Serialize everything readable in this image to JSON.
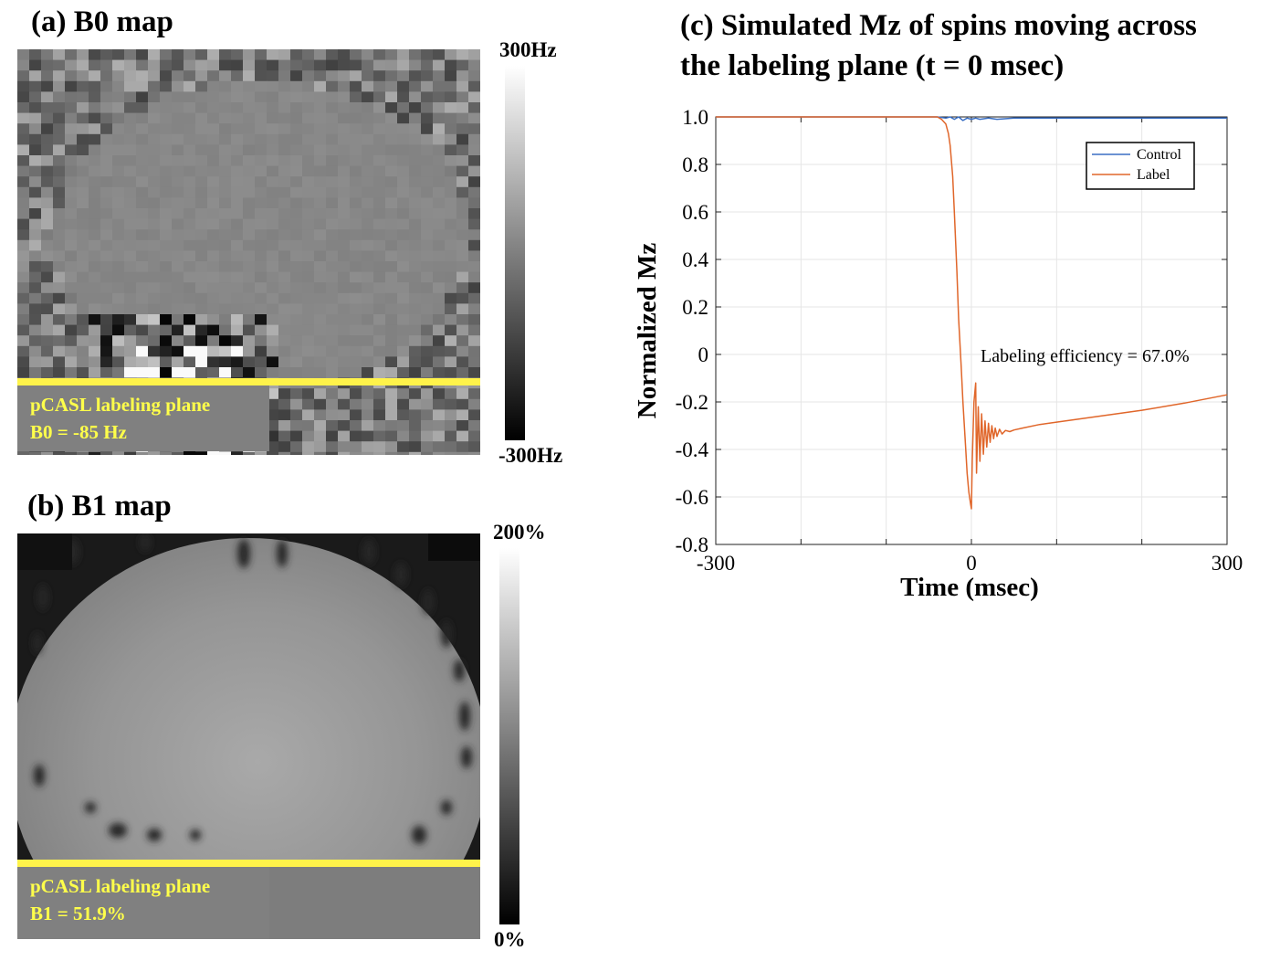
{
  "panel_a": {
    "title": "(a) B0 map",
    "plane_label": "pCASL labeling plane",
    "plane_value": "B0 = -85 Hz",
    "colorbar": {
      "max_label": "300Hz",
      "min_label": "-300Hz"
    }
  },
  "panel_b": {
    "title": "(b) B1 map",
    "plane_label": "pCASL labeling plane",
    "plane_value": "B1 = 51.9%",
    "colorbar": {
      "max_label": "200%",
      "min_label": "0%"
    }
  },
  "colors": {
    "plane": "#fff34a",
    "plane_text": "#ffff4a",
    "control": "#3a6fc4",
    "label": "#e0662a"
  },
  "chart_data": {
    "type": "line",
    "title": "(c) Simulated Mz of spins moving across the labeling plane (t = 0 msec)",
    "title_lines": [
      "(c) Simulated Mz of spins moving across",
      "the labeling plane (t = 0 msec)"
    ],
    "xlabel": "Time (msec)",
    "ylabel": "Normalized Mz",
    "xlim": [
      -300,
      300
    ],
    "ylim": [
      -0.8,
      1.0
    ],
    "x_ticks": [
      -300,
      0,
      300
    ],
    "x_tick_labels": [
      "-300",
      "0",
      "300"
    ],
    "y_ticks": [
      1.0,
      0.8,
      0.6,
      0.4,
      0.2,
      0,
      -0.2,
      -0.4,
      -0.6,
      -0.8
    ],
    "y_tick_labels": [
      "1.0",
      "0.8",
      "0.6",
      "0.4",
      "0.2",
      "0",
      "-0.2",
      "-0.4",
      "-0.6",
      "-0.8"
    ],
    "grid": true,
    "legend_position": "top-right",
    "annotation": "Labeling efficiency = 67.0%",
    "series": [
      {
        "name": "Control",
        "x": [
          -300,
          -200,
          -100,
          -40,
          -30,
          -25,
          -20,
          -15,
          -10,
          -5,
          0,
          5,
          10,
          20,
          30,
          50,
          100,
          200,
          300
        ],
        "y": [
          1.0,
          1.0,
          1.0,
          1.0,
          0.995,
          1.0,
          0.99,
          1.0,
          0.985,
          0.995,
          0.99,
          0.995,
          0.99,
          0.995,
          0.99,
          0.995,
          0.995,
          0.995,
          0.995
        ]
      },
      {
        "name": "Label",
        "x": [
          -300,
          -200,
          -100,
          -40,
          -35,
          -30,
          -27,
          -25,
          -22,
          -20,
          -17,
          -15,
          -12,
          -10,
          -7,
          -5,
          -3,
          -1,
          0,
          1,
          3,
          5,
          6,
          8,
          10,
          12,
          14,
          16,
          18,
          20,
          22,
          24,
          26,
          28,
          30,
          33,
          36,
          40,
          45,
          50,
          60,
          80,
          100,
          150,
          200,
          250,
          300
        ],
        "y": [
          1.0,
          1.0,
          1.0,
          1.0,
          0.99,
          0.97,
          0.93,
          0.88,
          0.75,
          0.6,
          0.35,
          0.15,
          -0.05,
          -0.2,
          -0.38,
          -0.5,
          -0.58,
          -0.63,
          -0.65,
          -0.45,
          -0.2,
          -0.12,
          -0.5,
          -0.22,
          -0.45,
          -0.25,
          -0.42,
          -0.28,
          -0.39,
          -0.29,
          -0.37,
          -0.3,
          -0.355,
          -0.31,
          -0.345,
          -0.315,
          -0.335,
          -0.32,
          -0.325,
          -0.318,
          -0.31,
          -0.295,
          -0.285,
          -0.26,
          -0.235,
          -0.205,
          -0.17
        ]
      }
    ]
  }
}
